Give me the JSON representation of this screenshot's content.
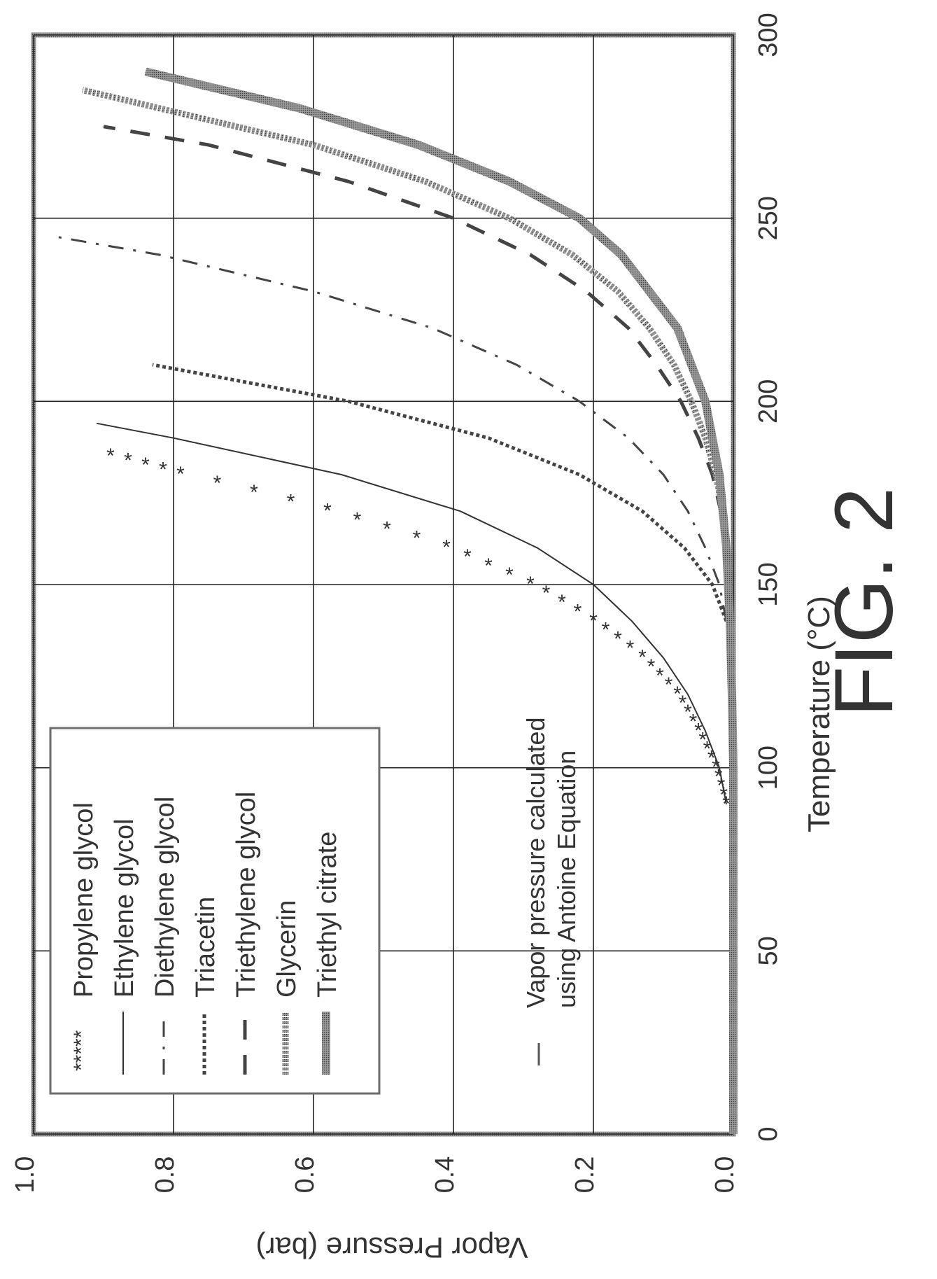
{
  "figure_label": "FIG. 2",
  "annotation": [
    "Vapor pressure calculated",
    "using Antoine Equation"
  ],
  "chart_data": {
    "type": "line",
    "title": "",
    "xlabel": "Temperature (°C)",
    "ylabel": "Vapor Pressure (bar)",
    "xlim": [
      0,
      300
    ],
    "ylim": [
      0.0,
      1.0
    ],
    "x_ticks": [
      "0",
      "50",
      "100",
      "150",
      "200",
      "250",
      "300"
    ],
    "y_ticks": [
      "0.0",
      "0.2",
      "0.4",
      "0.6",
      "0.8",
      "1.0"
    ],
    "grid": true,
    "legend_position": "upper-left",
    "orientation": "rotated-90-clockwise",
    "series": [
      {
        "name": "Propylene glycol",
        "style": "asterisk",
        "x": [
          90,
          100,
          110,
          120,
          130,
          140,
          150,
          160,
          170,
          180,
          185
        ],
        "y": [
          0.01,
          0.025,
          0.05,
          0.08,
          0.13,
          0.2,
          0.29,
          0.41,
          0.58,
          0.79,
          0.89
        ]
      },
      {
        "name": "Ethylene glycol",
        "style": "thin-solid",
        "x": [
          90,
          100,
          110,
          120,
          130,
          140,
          150,
          160,
          170,
          180,
          190,
          194
        ],
        "y": [
          0.01,
          0.02,
          0.04,
          0.065,
          0.1,
          0.145,
          0.2,
          0.28,
          0.39,
          0.56,
          0.8,
          0.91
        ]
      },
      {
        "name": "Diethylene glycol",
        "style": "dash-dot",
        "x": [
          130,
          140,
          150,
          160,
          170,
          180,
          190,
          200,
          210,
          220,
          230,
          240,
          245
        ],
        "y": [
          0.005,
          0.01,
          0.02,
          0.04,
          0.065,
          0.1,
          0.15,
          0.22,
          0.31,
          0.43,
          0.6,
          0.82,
          0.97
        ]
      },
      {
        "name": "Triacetin",
        "style": "dotted-square",
        "x": [
          140,
          150,
          160,
          170,
          180,
          190,
          200,
          210
        ],
        "y": [
          0.01,
          0.03,
          0.07,
          0.13,
          0.22,
          0.35,
          0.55,
          0.83
        ]
      },
      {
        "name": "Triethylene glycol",
        "style": "long-dash",
        "x": [
          150,
          160,
          170,
          180,
          190,
          200,
          210,
          220,
          230,
          240,
          250,
          260,
          270,
          275
        ],
        "y": [
          0.005,
          0.01,
          0.018,
          0.03,
          0.05,
          0.075,
          0.11,
          0.15,
          0.21,
          0.29,
          0.4,
          0.55,
          0.75,
          0.9
        ]
      },
      {
        "name": "Glycerin",
        "style": "beaded",
        "x": [
          150,
          160,
          170,
          180,
          190,
          200,
          210,
          220,
          230,
          240,
          250,
          260,
          270,
          280,
          285
        ],
        "y": [
          0.005,
          0.01,
          0.015,
          0.025,
          0.04,
          0.06,
          0.085,
          0.12,
          0.165,
          0.23,
          0.32,
          0.44,
          0.6,
          0.82,
          0.93
        ]
      },
      {
        "name": "Triethyl citrate",
        "style": "thick-solid",
        "x": [
          0,
          50,
          100,
          120,
          140,
          160,
          180,
          200,
          220,
          240,
          250,
          260,
          270,
          280,
          290
        ],
        "y": [
          0.0,
          0.0,
          0.0,
          0.002,
          0.005,
          0.01,
          0.02,
          0.04,
          0.08,
          0.16,
          0.22,
          0.32,
          0.45,
          0.62,
          0.84
        ]
      }
    ]
  }
}
